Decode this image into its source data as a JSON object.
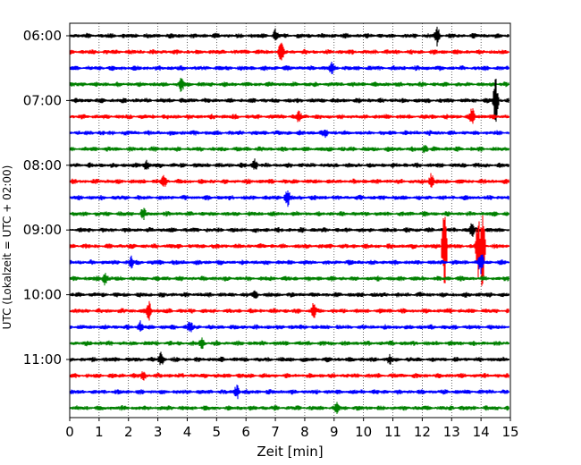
{
  "chart_data": {
    "type": "line",
    "title": "",
    "xlabel": "Zeit  [min]",
    "ylabel": "UTC (Lokalzeit = UTC + 02:00)",
    "xlim": [
      0,
      15
    ],
    "x_ticks": [
      0,
      1,
      2,
      3,
      4,
      5,
      6,
      7,
      8,
      9,
      10,
      11,
      12,
      13,
      14,
      15
    ],
    "x_tick_labels": [
      "0",
      "1",
      "2",
      "3",
      "4",
      "5",
      "6",
      "7",
      "8",
      "9",
      "10",
      "11",
      "12",
      "13",
      "14",
      "15"
    ],
    "y_ticks": [
      {
        "label": "06:00",
        "trace_index": 0
      },
      {
        "label": "07:00",
        "trace_index": 4
      },
      {
        "label": "08:00",
        "trace_index": 8
      },
      {
        "label": "09:00",
        "trace_index": 12
      },
      {
        "label": "10:00",
        "trace_index": 16
      },
      {
        "label": "11:00",
        "trace_index": 20
      }
    ],
    "trace_interval_min": 15,
    "trace_colors": [
      "#000000",
      "#ff0000",
      "#0000ff",
      "#008000"
    ],
    "grid": "vertical dotted",
    "traces": [
      {
        "start": "06:00",
        "color": "#000000",
        "events": [
          {
            "t": 12.5,
            "amp": 0.7
          },
          {
            "t": 7.0,
            "amp": 0.4
          }
        ]
      },
      {
        "start": "06:15",
        "color": "#ff0000",
        "events": [
          {
            "t": 7.2,
            "amp": 0.8
          }
        ]
      },
      {
        "start": "06:30",
        "color": "#0000ff",
        "events": [
          {
            "t": 8.9,
            "amp": 0.4
          }
        ]
      },
      {
        "start": "06:45",
        "color": "#008000",
        "events": [
          {
            "t": 3.8,
            "amp": 0.6
          }
        ]
      },
      {
        "start": "07:00",
        "color": "#000000",
        "events": [
          {
            "t": 14.5,
            "amp": 1.8
          }
        ]
      },
      {
        "start": "07:15",
        "color": "#ff0000",
        "events": [
          {
            "t": 13.7,
            "amp": 0.6
          },
          {
            "t": 7.8,
            "amp": 0.4
          }
        ]
      },
      {
        "start": "07:30",
        "color": "#0000ff",
        "events": [
          {
            "t": 8.7,
            "amp": 0.3
          }
        ]
      },
      {
        "start": "07:45",
        "color": "#008000",
        "events": [
          {
            "t": 12.1,
            "amp": 0.3
          }
        ]
      },
      {
        "start": "08:00",
        "color": "#000000",
        "events": [
          {
            "t": 6.3,
            "amp": 0.4
          },
          {
            "t": 2.6,
            "amp": 0.4
          }
        ]
      },
      {
        "start": "08:15",
        "color": "#ff0000",
        "events": [
          {
            "t": 12.3,
            "amp": 0.6
          },
          {
            "t": 3.2,
            "amp": 0.4
          }
        ]
      },
      {
        "start": "08:30",
        "color": "#0000ff",
        "events": [
          {
            "t": 7.4,
            "amp": 0.7
          }
        ]
      },
      {
        "start": "08:45",
        "color": "#008000",
        "events": [
          {
            "t": 2.5,
            "amp": 0.4
          }
        ]
      },
      {
        "start": "09:00",
        "color": "#000000",
        "events": [
          {
            "t": 13.7,
            "amp": 0.6
          }
        ]
      },
      {
        "start": "09:15",
        "color": "#ff0000",
        "events": [
          {
            "t": 12.75,
            "amp": 4.2
          },
          {
            "t": 13.9,
            "amp": 2.6
          },
          {
            "t": 14.05,
            "amp": 3.5
          }
        ]
      },
      {
        "start": "09:30",
        "color": "#0000ff",
        "events": [
          {
            "t": 14.0,
            "amp": 1.0
          },
          {
            "t": 2.1,
            "amp": 0.4
          }
        ]
      },
      {
        "start": "09:45",
        "color": "#008000",
        "events": [
          {
            "t": 1.2,
            "amp": 0.5
          }
        ]
      },
      {
        "start": "10:00",
        "color": "#000000",
        "events": [
          {
            "t": 6.3,
            "amp": 0.3
          }
        ]
      },
      {
        "start": "10:15",
        "color": "#ff0000",
        "events": [
          {
            "t": 2.7,
            "amp": 0.7
          },
          {
            "t": 8.3,
            "amp": 0.6
          }
        ]
      },
      {
        "start": "10:30",
        "color": "#0000ff",
        "events": [
          {
            "t": 2.4,
            "amp": 0.4
          },
          {
            "t": 4.1,
            "amp": 0.4
          }
        ]
      },
      {
        "start": "10:45",
        "color": "#008000",
        "events": [
          {
            "t": 4.5,
            "amp": 0.4
          }
        ]
      },
      {
        "start": "11:00",
        "color": "#000000",
        "events": [
          {
            "t": 3.1,
            "amp": 0.5
          },
          {
            "t": 10.9,
            "amp": 0.3
          }
        ]
      },
      {
        "start": "11:15",
        "color": "#ff0000",
        "events": [
          {
            "t": 2.5,
            "amp": 0.3
          }
        ]
      },
      {
        "start": "11:30",
        "color": "#0000ff",
        "events": [
          {
            "t": 5.7,
            "amp": 0.6
          }
        ]
      },
      {
        "start": "11:45",
        "color": "#008000",
        "events": [
          {
            "t": 9.1,
            "amp": 0.3
          }
        ]
      }
    ]
  }
}
